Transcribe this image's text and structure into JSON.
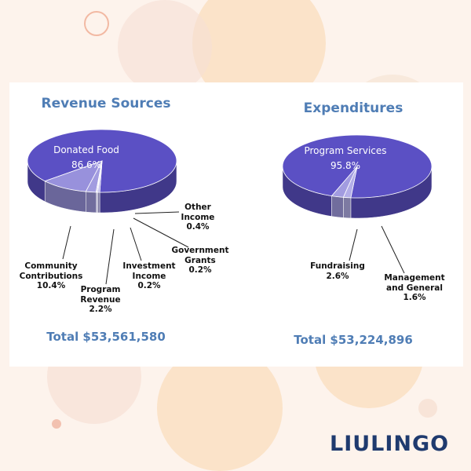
{
  "brand": "LIULINGO",
  "chart_data": [
    {
      "type": "pie",
      "title": "Revenue Sources",
      "categories": [
        "Donated Food",
        "Community Contributions",
        "Program Revenue",
        "Investment Income",
        "Government Grants",
        "Other Income"
      ],
      "values": [
        86.6,
        10.4,
        2.2,
        0.2,
        0.2,
        0.4
      ],
      "value_labels": [
        "86.6%",
        "10.4%",
        "2.2%",
        "0.2%",
        "0.2%",
        "0.4%"
      ],
      "colors": [
        "#5b50c4",
        "#9891dc",
        "#a29ce0",
        "#8d86d6",
        "#a8a2e3",
        "#b3aee8"
      ],
      "total": "Total $53,561,580"
    },
    {
      "type": "pie",
      "title": "Expenditures",
      "categories": [
        "Program Services",
        "Fundraising",
        "Management and General"
      ],
      "values": [
        95.8,
        2.6,
        1.6
      ],
      "value_labels": [
        "95.8%",
        "2.6%",
        "1.6%"
      ],
      "colors": [
        "#5b50c4",
        "#a29ce0",
        "#b3aee8"
      ],
      "total": "Total $53,224,896"
    }
  ]
}
